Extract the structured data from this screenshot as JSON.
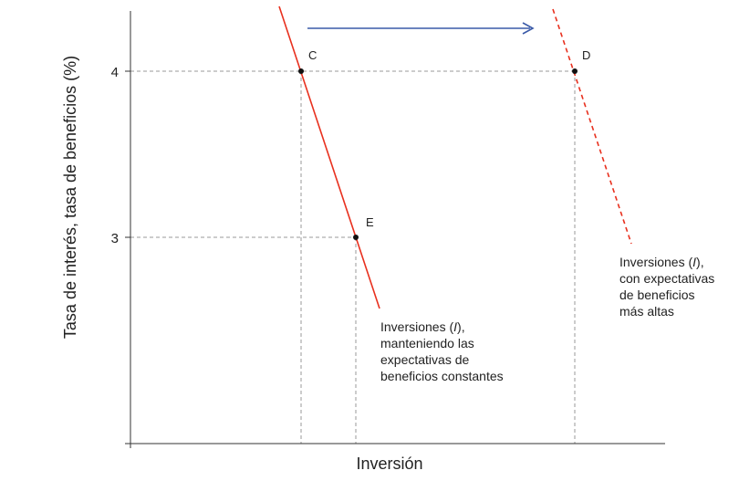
{
  "chart_data": {
    "type": "line",
    "xlabel": "Inversión",
    "ylabel": "Tasa de interés, tasa de beneficios (%)",
    "y_ticks": [
      {
        "value": 3,
        "label": "3"
      },
      {
        "value": 4,
        "label": "4"
      }
    ],
    "series": [
      {
        "label_lines": [
          "Inversiones (I),",
          "manteniendo las",
          "expectativas de",
          "beneficios constantes"
        ],
        "style": "solid",
        "color": "#e8301e"
      },
      {
        "label_lines": [
          "Inversiones (I),",
          "con expectativas",
          "de beneficios",
          "más altas"
        ],
        "style": "dashed",
        "color": "#e8301e"
      }
    ],
    "points": [
      {
        "label": "C",
        "y": 4
      },
      {
        "label": "D",
        "y": 4
      },
      {
        "label": "E",
        "y": 3
      }
    ],
    "shift_arrow": {
      "direction": "right",
      "color": "#3a5aa8"
    },
    "grid": false
  }
}
